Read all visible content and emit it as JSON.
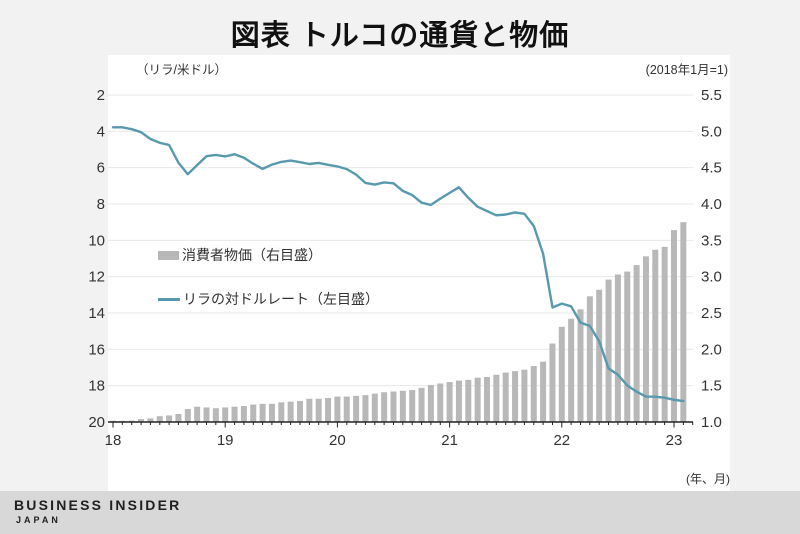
{
  "title": "図表 トルコの通貨と物価",
  "footer": {
    "brand": "BUSINESS INSIDER",
    "region": "JAPAN"
  },
  "legend": {
    "bar_label": "消費者物価（右目盛）",
    "line_label": "リラの対ドルレート（左目盛）"
  },
  "colors": {
    "background": "#f2f2f2",
    "panel": "#ffffff",
    "bar": "#b8b8b8",
    "line": "#5899ae",
    "grid": "#e8e8e8",
    "axis": "#222222",
    "tick_text": "#333333",
    "footer_band": "#d8d8d8",
    "footer_text": "#1f1f1f"
  },
  "chart_data": {
    "type": "combo",
    "title": "図表 トルコの通貨と物価",
    "x_start": "2018-01",
    "x_frequency": "monthly",
    "x_tick_labels": [
      "18",
      "19",
      "20",
      "21",
      "22",
      "23"
    ],
    "x_note": "(年、月)",
    "left_axis": {
      "unit": "（リラ/米ドル）",
      "ticks": [
        "2",
        "4",
        "6",
        "8",
        "10",
        "12",
        "14",
        "16",
        "18",
        "20"
      ],
      "range": [
        2,
        20
      ],
      "orientation": "inverted (2 at top, 20 at bottom)"
    },
    "right_axis": {
      "unit": "(2018年1月=1)",
      "ticks": [
        "5.5",
        "5.0",
        "4.5",
        "4.0",
        "3.5",
        "3.0",
        "2.5",
        "2.0",
        "1.5",
        "1.0"
      ],
      "range": [
        1,
        5.5
      ]
    },
    "grid": "horizontal only",
    "legend_position": "inside upper-left of plot",
    "series": [
      {
        "name": "消費者物価（右目盛）",
        "type": "bar",
        "axis": "right",
        "values": [
          1.0,
          1.01,
          1.02,
          1.04,
          1.05,
          1.08,
          1.09,
          1.11,
          1.18,
          1.21,
          1.2,
          1.19,
          1.2,
          1.21,
          1.22,
          1.24,
          1.25,
          1.25,
          1.27,
          1.28,
          1.29,
          1.32,
          1.32,
          1.33,
          1.35,
          1.35,
          1.36,
          1.37,
          1.39,
          1.41,
          1.42,
          1.43,
          1.44,
          1.47,
          1.51,
          1.53,
          1.55,
          1.57,
          1.58,
          1.61,
          1.62,
          1.65,
          1.68,
          1.7,
          1.72,
          1.77,
          1.83,
          2.08,
          2.31,
          2.42,
          2.55,
          2.73,
          2.82,
          2.96,
          3.03,
          3.07,
          3.16,
          3.28,
          3.37,
          3.41,
          3.64,
          3.75
        ]
      },
      {
        "name": "リラの対ドルレート（左目盛）",
        "type": "line",
        "axis": "left",
        "values": [
          3.78,
          3.78,
          3.88,
          4.05,
          4.42,
          4.63,
          4.75,
          5.72,
          6.36,
          5.86,
          5.37,
          5.3,
          5.38,
          5.26,
          5.45,
          5.78,
          6.07,
          5.83,
          5.68,
          5.61,
          5.7,
          5.8,
          5.74,
          5.84,
          5.93,
          6.08,
          6.38,
          6.84,
          6.93,
          6.81,
          6.86,
          7.28,
          7.51,
          7.93,
          8.05,
          7.7,
          7.39,
          7.08,
          7.66,
          8.15,
          8.39,
          8.62,
          8.58,
          8.46,
          8.54,
          9.21,
          10.74,
          13.7,
          13.48,
          13.63,
          14.53,
          14.71,
          15.56,
          17.05,
          17.4,
          17.99,
          18.33,
          18.6,
          18.61,
          18.66,
          18.78,
          18.85
        ]
      }
    ]
  }
}
